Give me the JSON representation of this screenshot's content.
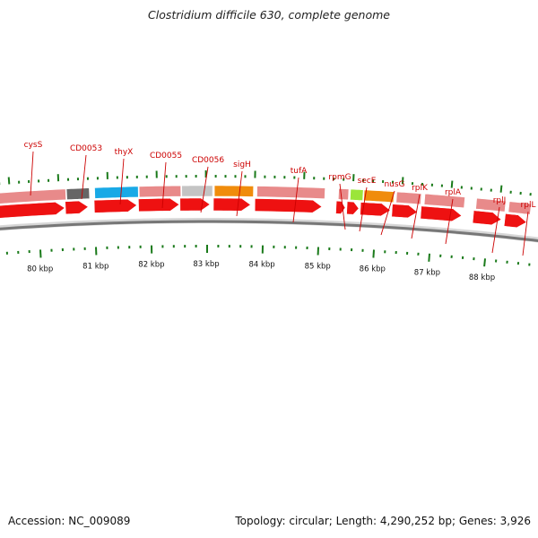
{
  "title": "Clostridium difficile 630, complete genome",
  "footer": {
    "accession": "Accession: NC_009089",
    "summary": "Topology: circular; Length: 4,290,252 bp; Genes: 3,926"
  },
  "colors": {
    "gene_label": "#cc0000",
    "gene_arrow": "#ee1111",
    "feature_pink": "#e88a8a",
    "feature_dark": "#666666",
    "feature_cyan": "#19a9e6",
    "feature_silver": "#c4c4c4",
    "feature_orange": "#f08c0c",
    "feature_lime": "#9be53a",
    "tick_green": "#1a7a1a",
    "backbone": "#777777"
  },
  "scale_labels": [
    "80 kbp",
    "81 kbp",
    "82 kbp",
    "83 kbp",
    "84 kbp",
    "85 kbp",
    "86 kbp",
    "87 kbp",
    "88 kbp"
  ],
  "gene_labels": [
    "cysS",
    "CD0053",
    "thyX",
    "CD0055",
    "CD0056",
    "sigH",
    "tufA",
    "rpmG",
    "secE",
    "nusG",
    "rplK",
    "rplA",
    "rplJ",
    "rplL"
  ]
}
